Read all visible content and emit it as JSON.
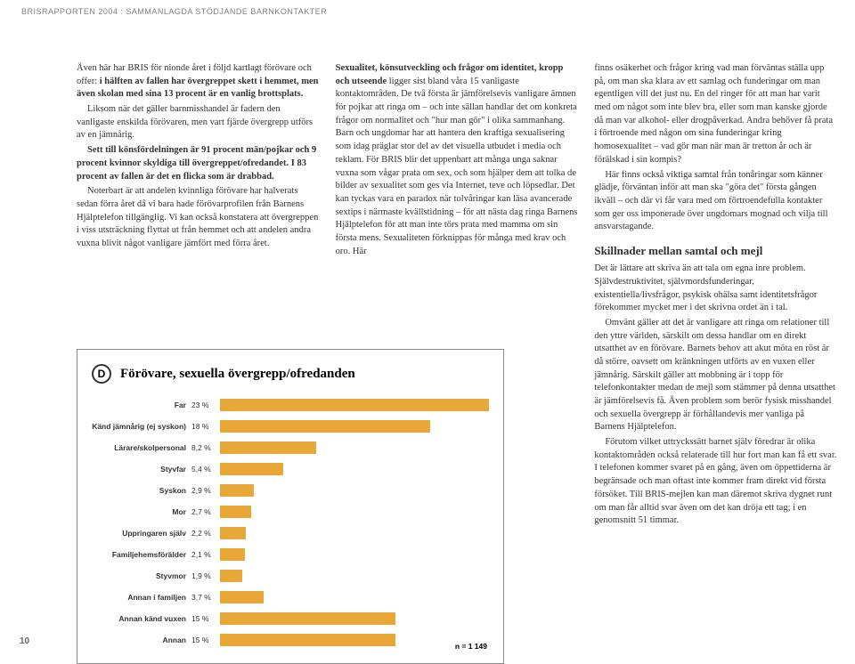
{
  "header": "BRISRAPPORTEN 2004 : SAMMANLAGDA STÖDJANDE BARNKONTAKTER",
  "page_number": "10",
  "col1": {
    "p1": "Även här har BRIS för nionde året i följd kartlagt förövare och offer: ",
    "p1b": "i hälften av fallen har övergreppet skett i hemmet, men även skolan med sina 13 procent är en vanlig brottsplats.",
    "p2": "Liksom när det gäller barnmisshandel är fadern den vanligaste enskilda förövaren, men vart fjärde övergrepp utförs av en jämnårig.",
    "p3a": "Sett till könsfördelningen är 91 procent män/pojkar och 9 procent kvinnor skyldiga till övergreppet/ofredandet. I 83 procent av fallen är det en flicka som är drabbad.",
    "p4": "Noterbart är att andelen kvinnliga förövare har halverats sedan förra året då vi bara hade förövarprofilen från Barnens Hjälptelefon tillgänglig. Vi kan också konstatera att övergreppen i viss utsträckning flyttat ut från hemmet och att andelen andra vuxna blivit något vanligare jämfört med förra året."
  },
  "col2": {
    "p1a": "Sexualitet, könsutveckling och frågor om identitet, kropp och utseende",
    "p1b": " ligger sist bland våra 15 vanligaste kontaktområden. De två första är jämförelsevis vanligare ämnen för pojkar att ringa om – och inte sällan handlar det om konkreta frågor om normalitet och \"hur man gör\" i olika sammanhang. Barn och ungdomar har att hantera den kraftiga sexualisering som idag präglar stor del av det visuella utbudet i media och reklam. För BRIS blir det uppenbart att många unga saknar vuxna som vågar prata om sex, och som hjälper dem att tolka de bilder av sexualitet som ges via Internet, teve och löpsedlar. Det kan tyckas vara en paradox när tolvåringar kan läsa avancerade sextips i närmaste kvällstidning – för att nästa dag ringa Barnens Hjälptelefon för att man inte törs prata med mamma om sin första mens. Sexualiteten förknippas för många med krav och oro. Här"
  },
  "col3": {
    "p1": "finns osäkerhet och frågor kring vad man förväntas ställa upp på, om man ska klara av ett samlag och funderingar om man egentligen vill det just nu. En del ringer för att man har varit med om något som inte blev bra, eller som man kanske gjorde då man var alkohol- eller drogpåverkad. Andra behöver få prata i förtroende med någon om sina funderingar kring homosexualitet – vad gör man när man är tretton år och är förälskad i sin kompis?",
    "p2": "Här finns också viktiga samtal från tonåringar som känner glädje, förväntan inför att man ska \"göra det\" första gången ikväll – och där vi får vara med om förtroendefulla kontakter som ger oss imponerade över ungdomars mognad och vilja till ansvarstagande.",
    "title": "Skillnader mellan samtal och mejl",
    "p3": "Det är lättare att skriva än att tala om egna inre problem. Självdestruktivitet, självmordsfunderingar, existentiella/livsfrågor, psykisk ohälsa samt identitetsfrågor förekommer mycket mer i det skrivna ordet än i tal.",
    "p4": "Omvänt gäller att det är vanligare att ringa om relationer till den yttre världen, särskilt om dessa handlar om en direkt utsatthet av en förövare. Barnets behov att akut möta en röst är då större, oavsett om kränkningen utförts av en vuxen eller jämnårig. Särskilt gäller att mobbning är i topp för telefonkontakter medan de mejl som stämmer på denna utsatthet är jämförelsevis få. Även problem som berör fysisk misshandel och sexuella övergrepp är förhållandevis mer vanliga på Barnens Hjälptelefon.",
    "p5": "Förutom vilket uttryckssätt barnet själv föredrar är olika kontaktområden också relaterade till hur fort man kan få ett svar. I telefonen kommer svaret på en gång, även om öppettiderna är begränsade och man oftast inte kommer fram direkt vid första försöket. Till BRIS-mejlen kan man däremot skriva dygnet runt om man får alltid svar även om det kan dröja ett tag; i en genomsnitt 51 timmar."
  },
  "chart": {
    "badge": "D",
    "title": "Förövare, sexuella övergrepp/ofredanden",
    "footnote": "n = 1 149",
    "bar_color": "#e8a838",
    "max_value": 23,
    "rows": [
      {
        "label": "Far",
        "value_text": "23 %",
        "value": 23
      },
      {
        "label": "Känd jämnårig (ej syskon)",
        "value_text": "18 %",
        "value": 18
      },
      {
        "label": "Lärare/skolpersonal",
        "value_text": "8,2 %",
        "value": 8.2
      },
      {
        "label": "Styvfar",
        "value_text": "5,4 %",
        "value": 5.4
      },
      {
        "label": "Syskon",
        "value_text": "2,9 %",
        "value": 2.9
      },
      {
        "label": "Mor",
        "value_text": "2,7 %",
        "value": 2.7
      },
      {
        "label": "Uppringaren själv",
        "value_text": "2,2 %",
        "value": 2.2
      },
      {
        "label": "Familjehemsförälder",
        "value_text": "2,1 %",
        "value": 2.1
      },
      {
        "label": "Styvmor",
        "value_text": "1,9 %",
        "value": 1.9
      },
      {
        "label": "Annan i familjen",
        "value_text": "3,7 %",
        "value": 3.7
      },
      {
        "label": "Annan känd vuxen",
        "value_text": "15 %",
        "value": 15
      },
      {
        "label": "Annan",
        "value_text": "15 %",
        "value": 15
      }
    ]
  }
}
